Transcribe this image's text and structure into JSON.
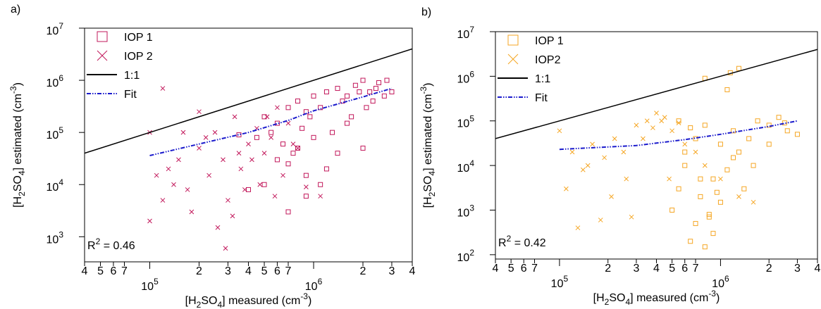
{
  "chart_data": [
    {
      "type": "scatter",
      "panel_label": "a)",
      "log_x": true,
      "log_y": true,
      "xlabel": [
        {
          "text": "[H"
        },
        {
          "text": "2",
          "shift": "sub"
        },
        {
          "text": "SO"
        },
        {
          "text": "4",
          "shift": "sub"
        },
        {
          "text": "] measured (cm"
        },
        {
          "text": "-3",
          "shift": "super"
        },
        {
          "text": ")"
        }
      ],
      "ylabel": [
        {
          "text": "[H"
        },
        {
          "text": "2",
          "shift": "sub"
        },
        {
          "text": "SO"
        },
        {
          "text": "4",
          "shift": "sub"
        },
        {
          "text": "] estimated (cm"
        },
        {
          "text": "-3",
          "shift": "super"
        },
        {
          "text": ")"
        }
      ],
      "annotation": [
        {
          "text": "R"
        },
        {
          "text": "2",
          "shift": "super"
        },
        {
          "text": " = 0.46"
        }
      ],
      "xlim": [
        40000,
        4000000
      ],
      "ylim": [
        330,
        10000000
      ],
      "xticks": [
        {
          "value": 40000,
          "label": "4"
        },
        {
          "value": 50000,
          "label": "5"
        },
        {
          "value": 60000,
          "label": "6"
        },
        {
          "value": 70000,
          "label": "7"
        },
        {
          "value": 100000,
          "label": "10",
          "exponent": "5"
        },
        {
          "value": 200000,
          "label": "2"
        },
        {
          "value": 300000,
          "label": "3"
        },
        {
          "value": 400000,
          "label": "4"
        },
        {
          "value": 500000,
          "label": "5"
        },
        {
          "value": 600000,
          "label": "6"
        },
        {
          "value": 700000,
          "label": "7"
        },
        {
          "value": 1000000,
          "label": "10",
          "exponent": "6"
        },
        {
          "value": 2000000,
          "label": "2"
        },
        {
          "value": 3000000,
          "label": "3"
        },
        {
          "value": 4000000,
          "label": "4"
        }
      ],
      "yticks": [
        {
          "value": 1000,
          "label": "10",
          "exponent": "3"
        },
        {
          "value": 10000,
          "label": "10",
          "exponent": "4"
        },
        {
          "value": 100000,
          "label": "10",
          "exponent": "5"
        },
        {
          "value": 1000000,
          "label": "10",
          "exponent": "6"
        },
        {
          "value": 10000000,
          "label": "10",
          "exponent": "7"
        }
      ],
      "series": [
        {
          "name": "IOP 1",
          "marker": "square",
          "color": "#c2185b",
          "x": [
            500000,
            600000,
            700000,
            800000,
            900000,
            1000000,
            1200000,
            1400000,
            1600000,
            1800000,
            2000000,
            2200000,
            2500000,
            2800000,
            3000000,
            450000,
            550000,
            650000,
            750000,
            850000,
            950000,
            1100000,
            1300000,
            1500000,
            1700000,
            1900000,
            2100000,
            2400000,
            2700000,
            600000,
            700000,
            800000,
            900000,
            1000000,
            1200000,
            1400000,
            400000,
            500000,
            1600000,
            2000000,
            350000,
            2300000,
            700000,
            1100000,
            900000
          ],
          "values": [
            200000,
            150000,
            300000,
            400000,
            250000,
            500000,
            600000,
            700000,
            500000,
            800000,
            1000000,
            600000,
            900000,
            1000000,
            600000,
            80000,
            100000,
            60000,
            40000,
            120000,
            200000,
            300000,
            100000,
            400000,
            200000,
            600000,
            300000,
            700000,
            500000,
            30000,
            25000,
            50000,
            15000,
            80000,
            20000,
            40000,
            8000,
            10000,
            150000,
            50000,
            90000,
            400000,
            3000,
            10000,
            6000
          ]
        },
        {
          "name": "IOP 2",
          "marker": "cross",
          "color": "#c2185b",
          "x": [
            100000,
            110000,
            120000,
            130000,
            150000,
            170000,
            200000,
            220000,
            250000,
            280000,
            300000,
            330000,
            360000,
            400000,
            450000,
            500000,
            550000,
            600000,
            700000,
            800000,
            100000,
            120000,
            140000,
            160000,
            180000,
            200000,
            230000,
            260000,
            290000,
            320000,
            350000,
            380000,
            420000,
            470000,
            520000,
            580000,
            650000,
            750000,
            900000,
            1100000
          ],
          "values": [
            100000,
            15000,
            5000,
            20000,
            30000,
            8000,
            50000,
            80000,
            100000,
            30000,
            5000,
            200000,
            20000,
            60000,
            120000,
            40000,
            80000,
            300000,
            150000,
            50000,
            2000,
            700000,
            10000,
            100000,
            3000,
            250000,
            15000,
            1500,
            600,
            2500,
            40000,
            8000,
            30000,
            10000,
            200000,
            6000,
            15000,
            60000,
            9000,
            6000
          ]
        },
        {
          "name": "1:1",
          "marker": "line",
          "color": "#000000",
          "x": [
            40000,
            4000000
          ],
          "values": [
            40000,
            4000000
          ]
        },
        {
          "name": "Fit",
          "marker": "dashdot",
          "color": "#1a1acc",
          "x": [
            100000,
            200000,
            400000,
            700000,
            1000000,
            2000000,
            3000000
          ],
          "values": [
            36000,
            60000,
            100000,
            170000,
            260000,
            480000,
            700000
          ]
        }
      ]
    },
    {
      "type": "scatter",
      "panel_label": "b)",
      "log_x": true,
      "log_y": true,
      "xlabel": [
        {
          "text": "[H"
        },
        {
          "text": "2",
          "shift": "sub"
        },
        {
          "text": "SO"
        },
        {
          "text": "4",
          "shift": "sub"
        },
        {
          "text": "] measured (cm"
        },
        {
          "text": "-3",
          "shift": "super"
        },
        {
          "text": ")"
        }
      ],
      "ylabel": [
        {
          "text": "[H"
        },
        {
          "text": "2",
          "shift": "sub"
        },
        {
          "text": "SO"
        },
        {
          "text": "4",
          "shift": "sub"
        },
        {
          "text": "] estimated (cm"
        },
        {
          "text": "-3",
          "shift": "super"
        },
        {
          "text": ")"
        }
      ],
      "annotation": [
        {
          "text": "R"
        },
        {
          "text": "2",
          "shift": "super"
        },
        {
          "text": " = 0.42"
        }
      ],
      "xlim": [
        40000,
        4000000
      ],
      "ylim": [
        80,
        10000000
      ],
      "xticks": [
        {
          "value": 40000,
          "label": "4"
        },
        {
          "value": 50000,
          "label": "5"
        },
        {
          "value": 60000,
          "label": "6"
        },
        {
          "value": 70000,
          "label": "7"
        },
        {
          "value": 100000,
          "label": "10",
          "exponent": "5"
        },
        {
          "value": 200000,
          "label": "2"
        },
        {
          "value": 300000,
          "label": "3"
        },
        {
          "value": 400000,
          "label": "4"
        },
        {
          "value": 500000,
          "label": "5"
        },
        {
          "value": 600000,
          "label": "6"
        },
        {
          "value": 700000,
          "label": "7"
        },
        {
          "value": 1000000,
          "label": "10",
          "exponent": "6"
        },
        {
          "value": 2000000,
          "label": "2"
        },
        {
          "value": 3000000,
          "label": "3"
        },
        {
          "value": 4000000,
          "label": "4"
        }
      ],
      "yticks": [
        {
          "value": 100,
          "label": "10",
          "exponent": "2"
        },
        {
          "value": 1000,
          "label": "10",
          "exponent": "3"
        },
        {
          "value": 10000,
          "label": "10",
          "exponent": "4"
        },
        {
          "value": 100000,
          "label": "10",
          "exponent": "5"
        },
        {
          "value": 1000000,
          "label": "10",
          "exponent": "6"
        },
        {
          "value": 10000000,
          "label": "10",
          "exponent": "7"
        }
      ],
      "series": [
        {
          "name": "IOP 1",
          "marker": "square",
          "color": "#f5a623",
          "x": [
            500000,
            550000,
            600000,
            650000,
            700000,
            750000,
            800000,
            850000,
            900000,
            1000000,
            1100000,
            1200000,
            1300000,
            1500000,
            1700000,
            2000000,
            2300000,
            2600000,
            3000000,
            600000,
            700000,
            800000,
            900000,
            1000000,
            1200000,
            1400000,
            1600000,
            2000000,
            2500000,
            550000,
            650000,
            750000,
            850000,
            950000,
            1100000,
            1300000,
            800000,
            1150000
          ],
          "values": [
            1000,
            3000,
            10000,
            200,
            500,
            2000,
            150,
            800,
            5000,
            30000,
            8000,
            60000,
            20000,
            40000,
            100000,
            80000,
            120000,
            60000,
            50000,
            20000,
            40000,
            80000,
            300,
            1500,
            15000,
            3000,
            10000,
            30000,
            90000,
            100000,
            70000,
            5000,
            700,
            2500,
            500000,
            1500000,
            900000,
            1200000
          ]
        },
        {
          "name": "IOP2",
          "marker": "cross",
          "color": "#f5a623",
          "x": [
            100000,
            120000,
            140000,
            160000,
            190000,
            220000,
            260000,
            300000,
            350000,
            400000,
            450000,
            500000,
            600000,
            700000,
            800000,
            1000000,
            1300000,
            1600000,
            110000,
            130000,
            150000,
            180000,
            210000,
            250000,
            280000,
            330000,
            380000,
            430000,
            480000,
            550000
          ],
          "values": [
            60000,
            20000,
            8000,
            30000,
            15000,
            40000,
            5000,
            80000,
            100000,
            150000,
            120000,
            60000,
            30000,
            20000,
            10000,
            5000,
            2000,
            1500,
            3000,
            400,
            10000,
            600,
            2000,
            20000,
            700,
            40000,
            70000,
            100000,
            5000,
            90000
          ]
        },
        {
          "name": "1:1",
          "marker": "line",
          "color": "#000000",
          "x": [
            40000,
            4000000
          ],
          "values": [
            40000,
            4000000
          ]
        },
        {
          "name": "Fit",
          "marker": "dashdot",
          "color": "#1a1acc",
          "x": [
            100000,
            300000,
            600000,
            1000000,
            2000000,
            3000000
          ],
          "values": [
            23000,
            28000,
            38000,
            50000,
            75000,
            100000
          ]
        }
      ]
    }
  ]
}
